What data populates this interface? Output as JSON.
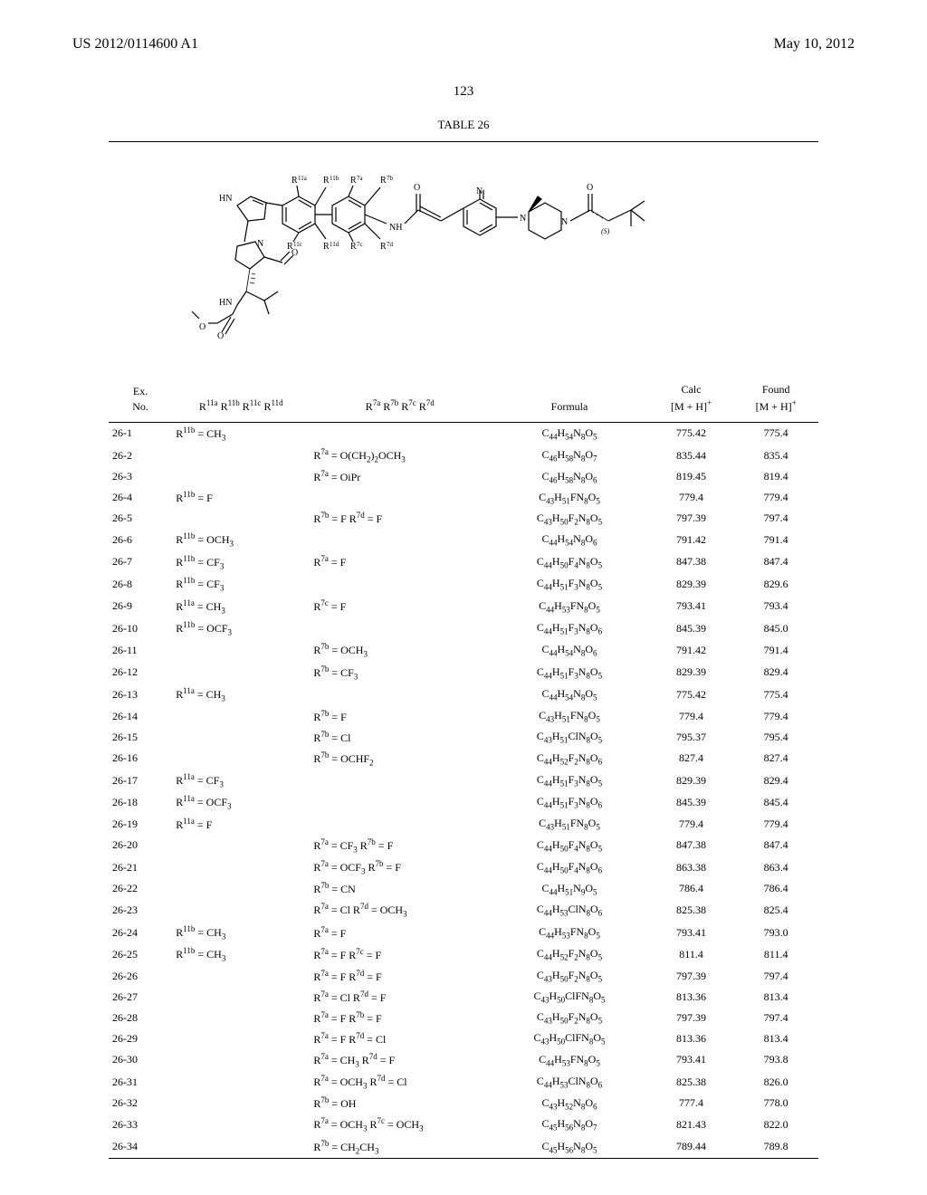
{
  "header": {
    "pub_number": "US 2012/0114600 A1",
    "pub_date": "May 10, 2012"
  },
  "page_number": "123",
  "table": {
    "title": "TABLE 26",
    "columns": {
      "ex_no_1": "Ex.",
      "ex_no_2": "No.",
      "r11_html": "R<sup>11a</sup> R<sup>11b</sup> R<sup>11c</sup> R<sup>11d</sup>",
      "r7_html": "R<sup>7a</sup> R<sup>7b</sup> R<sup>7c</sup> R<sup>7d</sup>",
      "formula": "Formula",
      "calc_1": "Calc",
      "calc_2_html": "[M + H]<sup>+</sup>",
      "found_1": "Found",
      "found_2_html": "[M + H]<sup>+</sup>"
    },
    "rows": [
      {
        "ex": "26-1",
        "r11_html": "R<sup>11b</sup> = CH<sub>3</sub>",
        "r7_html": "",
        "formula_html": "C<sub>44</sub>H<sub>54</sub>N<sub>8</sub>O<sub>5</sub>",
        "calc": "775.42",
        "found": "775.4"
      },
      {
        "ex": "26-2",
        "r11_html": "",
        "r7_html": "R<sup>7a</sup> = O(CH<sub>2</sub>)<sub>2</sub>OCH<sub>3</sub>",
        "formula_html": "C<sub>46</sub>H<sub>58</sub>N<sub>8</sub>O<sub>7</sub>",
        "calc": "835.44",
        "found": "835.4"
      },
      {
        "ex": "26-3",
        "r11_html": "",
        "r7_html": "R<sup>7a</sup> = OiPr",
        "formula_html": "C<sub>46</sub>H<sub>58</sub>N<sub>8</sub>O<sub>6</sub>",
        "calc": "819.45",
        "found": "819.4"
      },
      {
        "ex": "26-4",
        "r11_html": "R<sup>11b</sup> = F",
        "r7_html": "",
        "formula_html": "C<sub>43</sub>H<sub>51</sub>FN<sub>8</sub>O<sub>5</sub>",
        "calc": "779.4",
        "found": "779.4"
      },
      {
        "ex": "26-5",
        "r11_html": "",
        "r7_html": "R<sup>7b</sup> = F R<sup>7d</sup> = F",
        "formula_html": "C<sub>43</sub>H<sub>50</sub>F<sub>2</sub>N<sub>8</sub>O<sub>5</sub>",
        "calc": "797.39",
        "found": "797.4"
      },
      {
        "ex": "26-6",
        "r11_html": "R<sup>11b</sup> = OCH<sub>3</sub>",
        "r7_html": "",
        "formula_html": "C<sub>44</sub>H<sub>54</sub>N<sub>8</sub>O<sub>6</sub>",
        "calc": "791.42",
        "found": "791.4"
      },
      {
        "ex": "26-7",
        "r11_html": "R<sup>11b</sup> = CF<sub>3</sub>",
        "r7_html": "R<sup>7a</sup> = F",
        "formula_html": "C<sub>44</sub>H<sub>50</sub>F<sub>4</sub>N<sub>8</sub>O<sub>5</sub>",
        "calc": "847.38",
        "found": "847.4"
      },
      {
        "ex": "26-8",
        "r11_html": "R<sup>11b</sup> = CF<sub>3</sub>",
        "r7_html": "",
        "formula_html": "C<sub>44</sub>H<sub>51</sub>F<sub>3</sub>N<sub>8</sub>O<sub>5</sub>",
        "calc": "829.39",
        "found": "829.6"
      },
      {
        "ex": "26-9",
        "r11_html": "R<sup>11a</sup> = CH<sub>3</sub>",
        "r7_html": "R<sup>7c</sup> = F",
        "formula_html": "C<sub>44</sub>H<sub>53</sub>FN<sub>8</sub>O<sub>5</sub>",
        "calc": "793.41",
        "found": "793.4"
      },
      {
        "ex": "26-10",
        "r11_html": "R<sup>11b</sup> = OCF<sub>3</sub>",
        "r7_html": "",
        "formula_html": "C<sub>44</sub>H<sub>51</sub>F<sub>3</sub>N<sub>8</sub>O<sub>6</sub>",
        "calc": "845.39",
        "found": "845.0"
      },
      {
        "ex": "26-11",
        "r11_html": "",
        "r7_html": "R<sup>7b</sup> = OCH<sub>3</sub>",
        "formula_html": "C<sub>44</sub>H<sub>54</sub>N<sub>8</sub>O<sub>6</sub>",
        "calc": "791.42",
        "found": "791.4"
      },
      {
        "ex": "26-12",
        "r11_html": "",
        "r7_html": "R<sup>7b</sup> = CF<sub>3</sub>",
        "formula_html": "C<sub>44</sub>H<sub>51</sub>F<sub>3</sub>N<sub>8</sub>O<sub>5</sub>",
        "calc": "829.39",
        "found": "829.4"
      },
      {
        "ex": "26-13",
        "r11_html": "R<sup>11a</sup> = CH<sub>3</sub>",
        "r7_html": "",
        "formula_html": "C<sub>44</sub>H<sub>54</sub>N<sub>8</sub>O<sub>5</sub>",
        "calc": "775.42",
        "found": "775.4"
      },
      {
        "ex": "26-14",
        "r11_html": "",
        "r7_html": "R<sup>7b</sup> = F",
        "formula_html": "C<sub>43</sub>H<sub>51</sub>FN<sub>8</sub>O<sub>5</sub>",
        "calc": "779.4",
        "found": "779.4"
      },
      {
        "ex": "26-15",
        "r11_html": "",
        "r7_html": "R<sup>7b</sup> = Cl",
        "formula_html": "C<sub>43</sub>H<sub>51</sub>ClN<sub>8</sub>O<sub>5</sub>",
        "calc": "795.37",
        "found": "795.4"
      },
      {
        "ex": "26-16",
        "r11_html": "",
        "r7_html": "R<sup>7b</sup> = OCHF<sub>2</sub>",
        "formula_html": "C<sub>44</sub>H<sub>52</sub>F<sub>2</sub>N<sub>8</sub>O<sub>6</sub>",
        "calc": "827.4",
        "found": "827.4"
      },
      {
        "ex": "26-17",
        "r11_html": "R<sup>11a</sup> = CF<sub>3</sub>",
        "r7_html": "",
        "formula_html": "C<sub>44</sub>H<sub>51</sub>F<sub>3</sub>N<sub>8</sub>O<sub>5</sub>",
        "calc": "829.39",
        "found": "829.4"
      },
      {
        "ex": "26-18",
        "r11_html": "R<sup>11a</sup> = OCF<sub>3</sub>",
        "r7_html": "",
        "formula_html": "C<sub>44</sub>H<sub>51</sub>F<sub>3</sub>N<sub>8</sub>O<sub>6</sub>",
        "calc": "845.39",
        "found": "845.4"
      },
      {
        "ex": "26-19",
        "r11_html": "R<sup>11a</sup> = F",
        "r7_html": "",
        "formula_html": "C<sub>43</sub>H<sub>51</sub>FN<sub>8</sub>O<sub>5</sub>",
        "calc": "779.4",
        "found": "779.4"
      },
      {
        "ex": "26-20",
        "r11_html": "",
        "r7_html": "R<sup>7a</sup> = CF<sub>3</sub> R<sup>7b</sup> = F",
        "formula_html": "C<sub>44</sub>H<sub>50</sub>F<sub>4</sub>N<sub>8</sub>O<sub>5</sub>",
        "calc": "847.38",
        "found": "847.4"
      },
      {
        "ex": "26-21",
        "r11_html": "",
        "r7_html": "R<sup>7a</sup> = OCF<sub>3</sub> R<sup>7b</sup> = F",
        "formula_html": "C<sub>44</sub>H<sub>50</sub>F<sub>4</sub>N<sub>8</sub>O<sub>6</sub>",
        "calc": "863.38",
        "found": "863.4"
      },
      {
        "ex": "26-22",
        "r11_html": "",
        "r7_html": "R<sup>7b</sup> = CN",
        "formula_html": "C<sub>44</sub>H<sub>51</sub>N<sub>9</sub>O<sub>5</sub>",
        "calc": "786.4",
        "found": "786.4"
      },
      {
        "ex": "26-23",
        "r11_html": "",
        "r7_html": "R<sup>7a</sup> = Cl R<sup>7d</sup> = OCH<sub>3</sub>",
        "formula_html": "C<sub>44</sub>H<sub>53</sub>ClN<sub>8</sub>O<sub>6</sub>",
        "calc": "825.38",
        "found": "825.4"
      },
      {
        "ex": "26-24",
        "r11_html": "R<sup>11b</sup> = CH<sub>3</sub>",
        "r7_html": "R<sup>7a</sup> = F",
        "formula_html": "C<sub>44</sub>H<sub>53</sub>FN<sub>8</sub>O<sub>5</sub>",
        "calc": "793.41",
        "found": "793.0"
      },
      {
        "ex": "26-25",
        "r11_html": "R<sup>11b</sup> = CH<sub>3</sub>",
        "r7_html": "R<sup>7a</sup> = F R<sup>7c</sup> = F",
        "formula_html": "C<sub>44</sub>H<sub>52</sub>F<sub>2</sub>N<sub>8</sub>O<sub>5</sub>",
        "calc": "811.4",
        "found": "811.4"
      },
      {
        "ex": "26-26",
        "r11_html": "",
        "r7_html": "R<sup>7a</sup> = F R<sup>7d</sup> = F",
        "formula_html": "C<sub>43</sub>H<sub>50</sub>F<sub>2</sub>N<sub>8</sub>O<sub>5</sub>",
        "calc": "797.39",
        "found": "797.4"
      },
      {
        "ex": "26-27",
        "r11_html": "",
        "r7_html": "R<sup>7a</sup> = Cl R<sup>7d</sup> = F",
        "formula_html": "C<sub>43</sub>H<sub>50</sub>ClFN<sub>8</sub>O<sub>5</sub>",
        "calc": "813.36",
        "found": "813.4"
      },
      {
        "ex": "26-28",
        "r11_html": "",
        "r7_html": "R<sup>7a</sup> = F R<sup>7b</sup> = F",
        "formula_html": "C<sub>43</sub>H<sub>50</sub>F<sub>2</sub>N<sub>8</sub>O<sub>5</sub>",
        "calc": "797.39",
        "found": "797.4"
      },
      {
        "ex": "26-29",
        "r11_html": "",
        "r7_html": "R<sup>7a</sup> = F R<sup>7d</sup> = Cl",
        "formula_html": "C<sub>43</sub>H<sub>50</sub>ClFN<sub>8</sub>O<sub>5</sub>",
        "calc": "813.36",
        "found": "813.4"
      },
      {
        "ex": "26-30",
        "r11_html": "",
        "r7_html": "R<sup>7a</sup> = CH<sub>3</sub> R<sup>7d</sup> = F",
        "formula_html": "C<sub>44</sub>H<sub>53</sub>FN<sub>8</sub>O<sub>5</sub>",
        "calc": "793.41",
        "found": "793.8"
      },
      {
        "ex": "26-31",
        "r11_html": "",
        "r7_html": "R<sup>7a</sup> = OCH<sub>3</sub> R<sup>7d</sup> = Cl",
        "formula_html": "C<sub>44</sub>H<sub>53</sub>ClN<sub>8</sub>O<sub>6</sub>",
        "calc": "825.38",
        "found": "826.0"
      },
      {
        "ex": "26-32",
        "r11_html": "",
        "r7_html": "R<sup>7b</sup> = OH",
        "formula_html": "C<sub>43</sub>H<sub>52</sub>N<sub>8</sub>O<sub>6</sub>",
        "calc": "777.4",
        "found": "778.0"
      },
      {
        "ex": "26-33",
        "r11_html": "",
        "r7_html": "R<sup>7a</sup> = OCH<sub>3</sub> R<sup>7c</sup> = OCH<sub>3</sub>",
        "formula_html": "C<sub>45</sub>H<sub>56</sub>N<sub>8</sub>O<sub>7</sub>",
        "calc": "821.43",
        "found": "822.0"
      },
      {
        "ex": "26-34",
        "r11_html": "",
        "r7_html": "R<sup>7b</sup> = CH<sub>2</sub>CH<sub>3</sub>",
        "formula_html": "C<sub>45</sub>H<sub>56</sub>N<sub>8</sub>O<sub>5</sub>",
        "calc": "789.44",
        "found": "789.8"
      }
    ]
  },
  "structure_labels": {
    "r11a": "R11a",
    "r11b": "R11b",
    "r11c": "R11c",
    "r11d": "R11d",
    "r7a": "R7a",
    "r7b": "R7b",
    "r7c": "R7c",
    "r7d": "R7d",
    "hn_top": "HN",
    "hn_bot": "HN",
    "n": "N",
    "o1": "O",
    "o2": "O",
    "nh": "NH",
    "s_label": "(S)"
  }
}
